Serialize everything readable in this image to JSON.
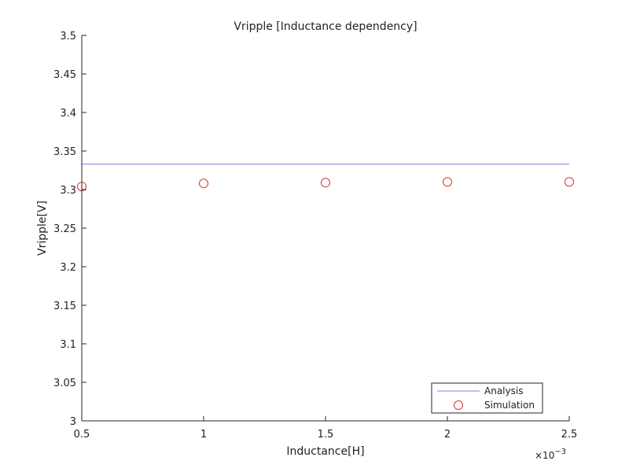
{
  "chart_data": {
    "type": "line",
    "title": "Vripple [Inductance dependency]",
    "xlabel": "Inductance[H]",
    "ylabel": "Vripple[V]",
    "x_exponent_label": "×10",
    "x_exponent_power": "−3",
    "xlim": [
      0.5,
      2.5
    ],
    "ylim": [
      3.0,
      3.5
    ],
    "xticks": [
      0.5,
      1,
      1.5,
      2,
      2.5
    ],
    "xtick_labels": [
      "0.5",
      "1",
      "1.5",
      "2",
      "2.5"
    ],
    "yticks": [
      3,
      3.05,
      3.1,
      3.15,
      3.2,
      3.25,
      3.3,
      3.35,
      3.4,
      3.45,
      3.5
    ],
    "ytick_labels": [
      "3",
      "3.05",
      "3.1",
      "3.15",
      "3.2",
      "3.25",
      "3.3",
      "3.35",
      "3.4",
      "3.45",
      "3.5"
    ],
    "grid": false,
    "legend_position": "bottom-right",
    "series": [
      {
        "name": "Analysis",
        "kind": "line",
        "color": "#8080e0",
        "x": [
          0.5,
          2.5
        ],
        "y": [
          3.333,
          3.333
        ]
      },
      {
        "name": "Simulation",
        "kind": "marker-circle",
        "color": "#e03030",
        "x": [
          0.5,
          1.0,
          1.5,
          2.0,
          2.5
        ],
        "y": [
          3.304,
          3.308,
          3.309,
          3.31,
          3.31
        ]
      }
    ]
  }
}
